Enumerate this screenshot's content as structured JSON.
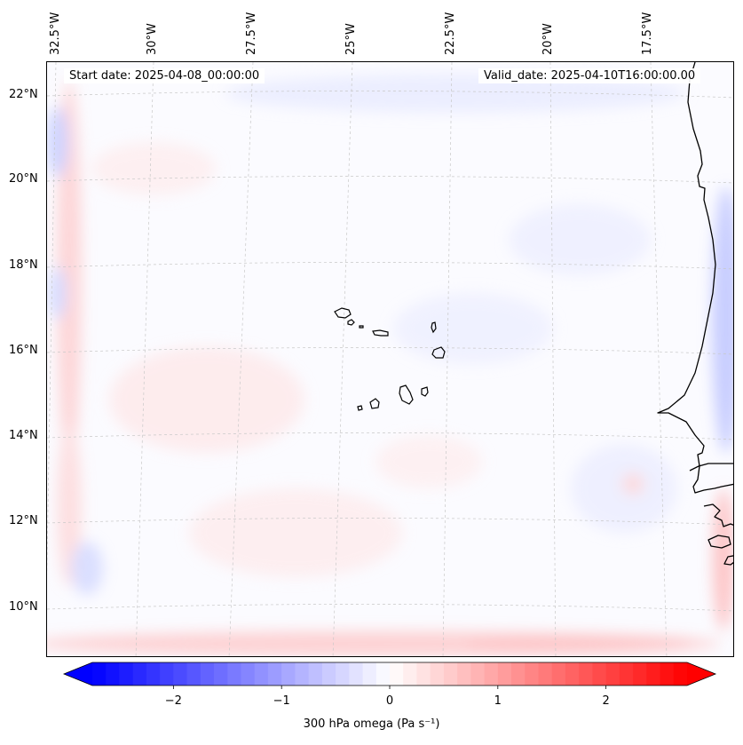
{
  "header": {
    "start_date": "Start date: 2025-04-08_00:00:00",
    "valid_date": "Valid_date: 2025-04-10T16:00:00.00"
  },
  "axes": {
    "longitude_labels": [
      "32.5°W",
      "30°W",
      "27.5°W",
      "25°W",
      "22.5°W",
      "20°W",
      "17.5°W"
    ],
    "latitude_labels": [
      "22°N",
      "20°N",
      "18°N",
      "16°N",
      "14°N",
      "12°N",
      "10°N"
    ]
  },
  "map": {
    "region": "Cape Verde / West Africa, eastern tropical Atlantic",
    "field": "300 hPa omega",
    "islands": [
      "santo-antao",
      "sao-vicente",
      "santa-luzia",
      "sao-nicolau",
      "sal",
      "boa-vista",
      "maio",
      "santiago",
      "fogo",
      "brava"
    ]
  },
  "colorbar": {
    "title": "300 hPa omega (Pa s⁻¹)",
    "min": -2.75,
    "max": 2.75,
    "ticks": [
      "−2",
      "−1",
      "0",
      "1",
      "2"
    ],
    "tick_values": [
      -2,
      -1,
      0,
      1,
      2
    ],
    "colormap": "bwr",
    "color_low": "#0000ff",
    "color_mid": "#ffffff",
    "color_high": "#ff0000",
    "coastline_color": "#000000",
    "grid_color": "#c8c8c8"
  }
}
